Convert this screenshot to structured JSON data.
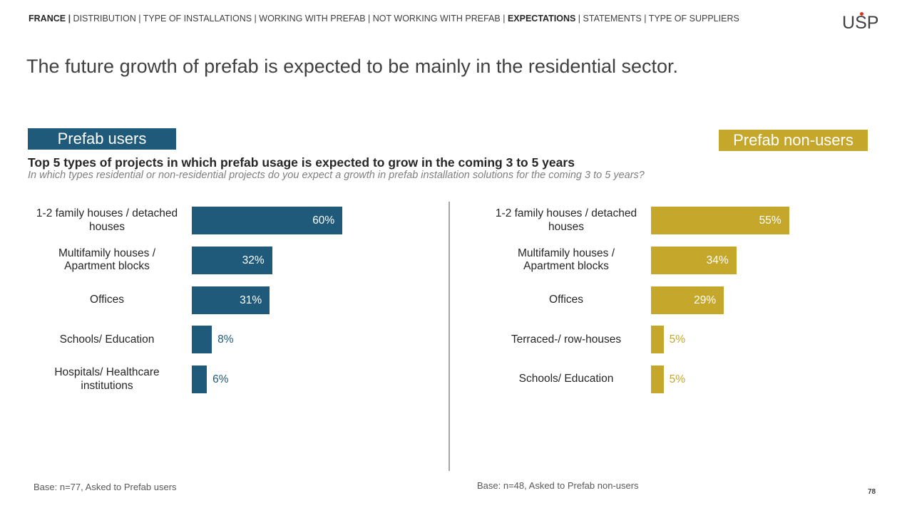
{
  "nav": {
    "country": "FRANCE",
    "items": [
      "DISTRIBUTION",
      "TYPE OF INSTALLATIONS",
      "WORKING WITH PREFAB",
      "NOT WORKING WITH PREFAB",
      "EXPECTATIONS",
      "STATEMENTS",
      "TYPE OF SUPPLIERS"
    ],
    "active": "EXPECTATIONS"
  },
  "logo": {
    "prefix": "U",
    "dotted": "S",
    "suffix": "P",
    "dot_color": "#e0301e"
  },
  "headline": "The future growth of prefab is expected to be mainly in the residential sector.",
  "question": {
    "title": "Top 5 types of projects in which prefab usage is expected to grow in the coming 3 to 5 years",
    "subtitle": "In which types residential or non-residential projects do you expect a growth in prefab installation solutions for the coming 3 to 5 years?"
  },
  "colors": {
    "users": "#1f5a7a",
    "nonusers": "#c4a72b"
  },
  "chart_data": [
    {
      "type": "bar",
      "orientation": "horizontal",
      "title": "Prefab users",
      "categories": [
        "1-2 family houses / detached houses",
        "Multifamily houses / Apartment blocks",
        "Offices",
        "Schools/ Education",
        "Hospitals/ Healthcare institutions"
      ],
      "category_lines": [
        [
          "1-2 family houses / detached",
          "houses"
        ],
        [
          "Multifamily houses /",
          "Apartment blocks"
        ],
        [
          "Offices"
        ],
        [
          "Schools/ Education"
        ],
        [
          "Hospitals/ Healthcare",
          "institutions"
        ]
      ],
      "values": [
        60,
        32,
        31,
        8,
        6
      ],
      "labels": [
        "60%",
        "32%",
        "31%",
        "8%",
        "6%"
      ],
      "base": "Base: n=77, Asked to Prefab users"
    },
    {
      "type": "bar",
      "orientation": "horizontal",
      "title": "Prefab non-users",
      "categories": [
        "1-2 family houses / detached houses",
        "Multifamily houses / Apartment blocks",
        "Offices",
        "Terraced-/ row-houses",
        "Schools/ Education"
      ],
      "category_lines": [
        [
          "1-2 family houses / detached",
          "houses"
        ],
        [
          "Multifamily houses /",
          "Apartment blocks"
        ],
        [
          "Offices"
        ],
        [
          "Terraced-/ row-houses"
        ],
        [
          "Schools/ Education"
        ]
      ],
      "values": [
        55,
        34,
        29,
        5,
        5
      ],
      "labels": [
        "55%",
        "34%",
        "29%",
        "5%",
        "5%"
      ],
      "base": "Base: n=48, Asked to Prefab non-users"
    }
  ],
  "page_number": "78"
}
